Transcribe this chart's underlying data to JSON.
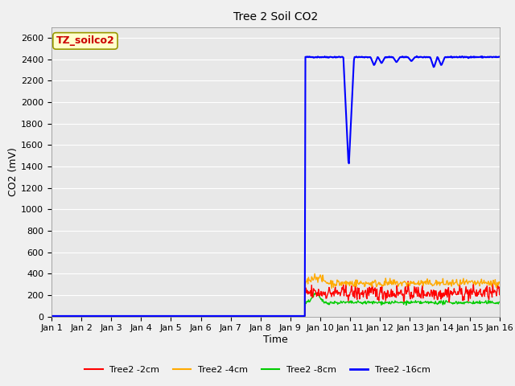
{
  "title": "Tree 2 Soil CO2",
  "xlabel": "Time",
  "ylabel": "CO2 (mV)",
  "ylim": [
    0,
    2700
  ],
  "yticks": [
    0,
    200,
    400,
    600,
    800,
    1000,
    1200,
    1400,
    1600,
    1800,
    2000,
    2200,
    2400,
    2600
  ],
  "xtick_labels": [
    "Jan 1",
    "Jan 2",
    "Jan 3",
    "Jan 4",
    "Jan 5",
    "Jan 6",
    "Jan 7",
    "Jan 8",
    "Jan 9",
    "Jan 10",
    "Jan 11",
    "Jan 12",
    "Jan 13",
    "Jan 14",
    "Jan 15",
    "Jan 16"
  ],
  "fig_bg_color": "#f0f0f0",
  "plot_bg_color": "#e8e8e8",
  "grid_color": "#ffffff",
  "legend_label": "TZ_soilco2",
  "legend_label_color": "#cc0000",
  "legend_label_bg": "#ffffcc",
  "legend_label_edge": "#999900",
  "series": [
    {
      "label": "Tree2 -2cm",
      "color": "#ff0000",
      "linewidth": 1.0
    },
    {
      "label": "Tree2 -4cm",
      "color": "#ffaa00",
      "linewidth": 1.0
    },
    {
      "label": "Tree2 -8cm",
      "color": "#00cc00",
      "linewidth": 1.0
    },
    {
      "label": "Tree2 -16cm",
      "color": "#0000ff",
      "linewidth": 1.5
    }
  ],
  "title_fontsize": 10,
  "axis_label_fontsize": 9,
  "tick_fontsize": 8
}
